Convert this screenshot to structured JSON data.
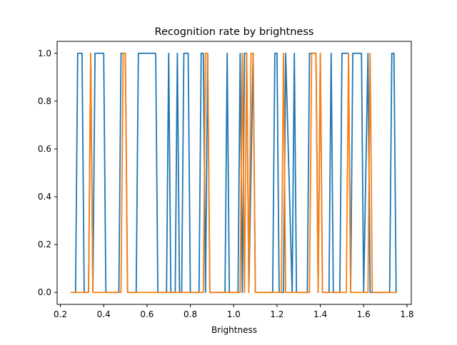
{
  "chart_data": {
    "type": "line",
    "title": "Recognition rate by brightness",
    "xlabel": "Brightness",
    "ylabel": "",
    "xlim": [
      0.185,
      1.82
    ],
    "ylim": [
      -0.05,
      1.05
    ],
    "x_ticks": [
      "0.2",
      "0.4",
      "0.6",
      "0.8",
      "1.0",
      "1.2",
      "1.4",
      "1.6",
      "1.8"
    ],
    "y_ticks": [
      "0.0",
      "0.2",
      "0.4",
      "0.6",
      "0.8",
      "1.0"
    ],
    "grid": false,
    "legend": null,
    "series": [
      {
        "color": "#1f77b4",
        "x": [
          0.26,
          0.27,
          0.28,
          0.3,
          0.31,
          0.33,
          0.34,
          0.35,
          0.36,
          0.37,
          0.38,
          0.4,
          0.41,
          0.42,
          0.47,
          0.48,
          0.49,
          0.5,
          0.51,
          0.55,
          0.56,
          0.64,
          0.65,
          0.69,
          0.7,
          0.71,
          0.73,
          0.74,
          0.75,
          0.76,
          0.77,
          0.78,
          0.79,
          0.8,
          0.84,
          0.85,
          0.86,
          0.87,
          0.88,
          0.89,
          0.96,
          0.97,
          0.98,
          1.02,
          1.03,
          1.04,
          1.05,
          1.06,
          1.07,
          1.09,
          1.1,
          1.18,
          1.19,
          1.2,
          1.21,
          1.23,
          1.24,
          1.27,
          1.28,
          1.29,
          1.34,
          1.35,
          1.38,
          1.39,
          1.4,
          1.41,
          1.44,
          1.45,
          1.46,
          1.49,
          1.5,
          1.53,
          1.54,
          1.55,
          1.56,
          1.59,
          1.6,
          1.62,
          1.63,
          1.72,
          1.73,
          1.74,
          1.75
        ],
        "y": [
          0,
          0,
          1,
          1,
          0,
          0,
          1,
          0,
          1,
          1,
          1,
          1,
          0,
          0,
          0,
          1,
          1,
          1,
          0,
          0,
          1,
          1,
          0,
          0,
          1,
          0,
          0,
          1,
          0,
          0,
          1,
          1,
          1,
          0,
          0,
          1,
          1,
          0,
          1,
          0,
          0,
          1,
          0,
          0,
          1,
          0,
          1,
          1,
          0,
          1,
          0,
          0,
          1,
          1,
          0,
          0,
          1,
          0,
          1,
          0,
          0,
          1,
          1,
          0,
          1,
          0,
          0,
          1,
          0,
          0,
          1,
          1,
          0,
          1,
          1,
          1,
          0,
          1,
          0,
          0,
          1,
          1,
          0
        ]
      },
      {
        "color": "#ff7f0e",
        "x": [
          0.25,
          0.26,
          0.32,
          0.33,
          0.34,
          0.35,
          0.36,
          0.48,
          0.49,
          0.5,
          0.51,
          0.55,
          0.56,
          0.86,
          0.87,
          0.88,
          0.89,
          1.03,
          1.04,
          1.05,
          1.06,
          1.07,
          1.08,
          1.09,
          1.1,
          1.22,
          1.23,
          1.24,
          1.25,
          1.35,
          1.36,
          1.37,
          1.38,
          1.39,
          1.4,
          1.41,
          1.52,
          1.53,
          1.54,
          1.55,
          1.56,
          1.62,
          1.63,
          1.64,
          1.75
        ],
        "y": [
          0,
          0,
          0,
          0,
          1,
          0,
          0,
          0,
          1,
          1,
          0,
          0,
          0,
          0,
          1,
          1,
          0,
          0,
          1,
          0,
          1,
          0,
          1,
          1,
          0,
          0,
          1,
          0,
          0,
          0,
          1,
          1,
          1,
          0,
          1,
          0,
          0,
          1,
          0,
          0,
          0,
          0,
          1,
          0,
          0
        ]
      }
    ]
  }
}
